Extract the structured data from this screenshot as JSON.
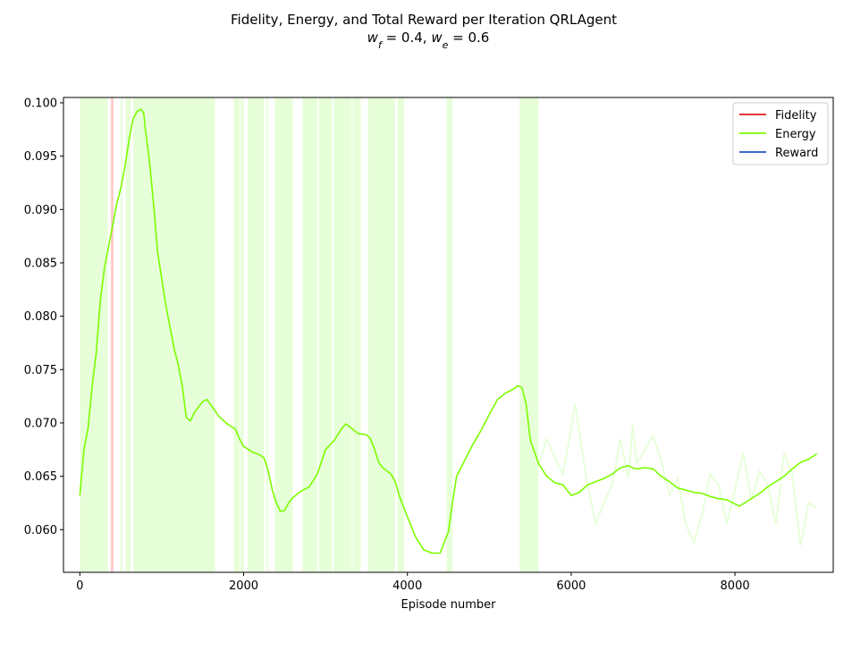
{
  "chart_data": {
    "type": "line",
    "title_line1": "Fidelity, Energy, and Total Reward per Iteration QRLAgent",
    "title_line2": "w_f = 0.4, w_e = 0.6",
    "title_line2_parts": [
      "w",
      "f",
      " = 0.4, ",
      "w",
      "e",
      " = 0.6"
    ],
    "xlabel": "Episode number",
    "ylabel": "",
    "xlim": [
      -200,
      9200
    ],
    "ylim": [
      0.056,
      0.1005
    ],
    "xticks": [
      0,
      2000,
      4000,
      6000,
      8000
    ],
    "xtick_labels": [
      "0",
      "2000",
      "4000",
      "6000",
      "8000"
    ],
    "yticks": [
      0.06,
      0.065,
      0.07,
      0.075,
      0.08,
      0.085,
      0.09,
      0.095,
      0.1
    ],
    "ytick_labels": [
      "0.060",
      "0.065",
      "0.070",
      "0.075",
      "0.080",
      "0.085",
      "0.090",
      "0.095",
      "0.100"
    ],
    "grid": false,
    "legend_position": "top-right",
    "colors": {
      "fidelity": "#e41a1c",
      "energy": "#7cfc00",
      "reward": "#2255cc",
      "fidelity_raw": "#ffc8c8",
      "energy_raw": "#e6ffd8"
    },
    "series": [
      {
        "name": "Fidelity",
        "key": "fidelity",
        "smoothed_visible": false,
        "raw_bands": [
          [
            20,
            60
          ],
          [
            70,
            130
          ],
          [
            190,
            230
          ],
          [
            380,
            410
          ]
        ]
      },
      {
        "name": "Energy",
        "key": "energy",
        "smoothed": {
          "x": [
            0,
            50,
            100,
            150,
            200,
            250,
            300,
            350,
            400,
            450,
            500,
            550,
            600,
            650,
            700,
            750,
            780,
            800,
            850,
            900,
            950,
            1000,
            1050,
            1100,
            1150,
            1200,
            1250,
            1300,
            1350,
            1400,
            1450,
            1500,
            1550,
            1600,
            1700,
            1800,
            1900,
            1950,
            2000,
            2100,
            2200,
            2250,
            2300,
            2350,
            2400,
            2450,
            2500,
            2550,
            2600,
            2700,
            2800,
            2900,
            3000,
            3100,
            3200,
            3250,
            3300,
            3400,
            3500,
            3550,
            3600,
            3650,
            3700,
            3800,
            3850,
            3900,
            4000,
            4100,
            4200,
            4300,
            4400,
            4450,
            4500,
            4550,
            4600,
            4700,
            4800,
            4900,
            5000,
            5100,
            5200,
            5300,
            5350,
            5400,
            5450,
            5500,
            5600,
            5700,
            5800,
            5900,
            6000,
            6100,
            6200,
            6300,
            6400,
            6500,
            6600,
            6700,
            6750,
            6800,
            6900,
            7000,
            7100,
            7200,
            7300,
            7400,
            7500,
            7600,
            7700,
            7800,
            7900,
            8000,
            8050,
            8100,
            8200,
            8300,
            8400,
            8500,
            8600,
            8700,
            8800,
            8900,
            9000
          ],
          "y": [
            0.0632,
            0.0675,
            0.0695,
            0.0735,
            0.0765,
            0.0815,
            0.0845,
            0.0865,
            0.0885,
            0.0905,
            0.092,
            0.094,
            0.0965,
            0.0985,
            0.0992,
            0.0994,
            0.099,
            0.0975,
            0.0945,
            0.0905,
            0.086,
            0.0835,
            0.081,
            0.079,
            0.077,
            0.0755,
            0.0735,
            0.0705,
            0.0702,
            0.071,
            0.0715,
            0.072,
            0.0722,
            0.0717,
            0.0706,
            0.0699,
            0.0694,
            0.0685,
            0.0678,
            0.0673,
            0.067,
            0.0667,
            0.0655,
            0.0637,
            0.0625,
            0.0617,
            0.0618,
            0.0625,
            0.063,
            0.0636,
            0.064,
            0.0652,
            0.0675,
            0.0683,
            0.0695,
            0.0699,
            0.0696,
            0.069,
            0.0689,
            0.0685,
            0.0675,
            0.0663,
            0.0658,
            0.0652,
            0.0645,
            0.0632,
            0.0612,
            0.0593,
            0.0581,
            0.0578,
            0.0578,
            0.0588,
            0.0598,
            0.0625,
            0.065,
            0.0665,
            0.068,
            0.0693,
            0.0708,
            0.0722,
            0.0728,
            0.0732,
            0.0735,
            0.0733,
            0.0718,
            0.0684,
            0.0662,
            0.065,
            0.0644,
            0.0642,
            0.0632,
            0.0635,
            0.0642,
            0.0645,
            0.0648,
            0.0652,
            0.0658,
            0.066,
            0.0658,
            0.0657,
            0.0658,
            0.0657,
            0.065,
            0.0645,
            0.0639,
            0.0637,
            0.0635,
            0.0634,
            0.0631,
            0.0629,
            0.0628,
            0.0624,
            0.0622,
            0.0624,
            0.0629,
            0.0634,
            0.064,
            0.0645,
            0.065,
            0.0657,
            0.0663,
            0.0666,
            0.0671
          ]
        },
        "raw_bands": [
          [
            0,
            340
          ],
          [
            500,
            520
          ],
          [
            560,
            620
          ],
          [
            650,
            1650
          ],
          [
            1880,
            1950
          ],
          [
            1960,
            2000
          ],
          [
            2050,
            2250
          ],
          [
            2280,
            2300
          ],
          [
            2380,
            2600
          ],
          [
            2720,
            2900
          ],
          [
            2920,
            3080
          ],
          [
            3100,
            3320
          ],
          [
            3330,
            3430
          ],
          [
            3520,
            3850
          ],
          [
            3880,
            3960
          ],
          [
            4480,
            4550
          ],
          [
            5370,
            5600
          ]
        ],
        "raw_trace": {
          "x": [
            5600,
            5700,
            5800,
            5900,
            6000,
            6050,
            6100,
            6200,
            6300,
            6400,
            6500,
            6600,
            6700,
            6750,
            6800,
            6900,
            7000,
            7100,
            7200,
            7300,
            7400,
            7500,
            7600,
            7700,
            7800,
            7900,
            8000,
            8100,
            8200,
            8300,
            8400,
            8500,
            8600,
            8700,
            8800,
            8900,
            9000
          ],
          "y": [
            0.066,
            0.0685,
            0.0668,
            0.0652,
            0.0695,
            0.0718,
            0.069,
            0.0642,
            0.0605,
            0.0625,
            0.0642,
            0.0685,
            0.0648,
            0.0698,
            0.0662,
            0.0675,
            0.0688,
            0.0665,
            0.0632,
            0.0648,
            0.0605,
            0.0588,
            0.0615,
            0.0652,
            0.0642,
            0.0605,
            0.0638,
            0.0672,
            0.0628,
            0.0655,
            0.0642,
            0.0605,
            0.0672,
            0.0652,
            0.0585,
            0.0625,
            0.062
          ]
        }
      },
      {
        "name": "Reward",
        "key": "reward",
        "smoothed_visible": false
      }
    ]
  }
}
